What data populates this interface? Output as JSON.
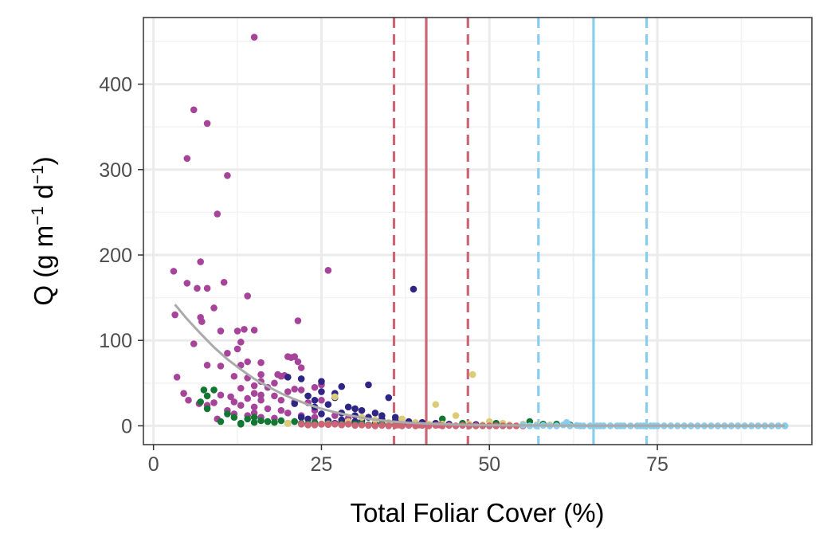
{
  "chart_data": {
    "type": "scatter",
    "xlabel": "Total Foliar Cover (%)",
    "ylabel": {
      "base": "Q (g m",
      "sup1": "−1",
      "mid": " d",
      "sup2": "−1",
      "end": ")"
    },
    "xlim": [
      -1.5,
      98
    ],
    "ylim": [
      -22,
      478
    ],
    "x_ticks": [
      0,
      25,
      50,
      75
    ],
    "x_tick_labels": [
      "0",
      "25",
      "50",
      "75"
    ],
    "y_ticks": [
      0,
      100,
      200,
      300,
      400
    ],
    "y_tick_labels": [
      "0",
      "100",
      "200",
      "300",
      "400"
    ],
    "grid": true,
    "legend": "none",
    "colors": {
      "purple": "#a6449a",
      "navy": "#2e2585",
      "green": "#117733",
      "sand": "#ddcc77",
      "rose": "#cc6677",
      "sky": "#88ccee",
      "fit": "#aaaaaa"
    },
    "vlines": [
      {
        "x": 40.6,
        "color": "#cc6677",
        "style": "solid"
      },
      {
        "x": 35.8,
        "color": "#cc6677",
        "style": "dashed"
      },
      {
        "x": 46.8,
        "color": "#cc6677",
        "style": "dashed"
      },
      {
        "x": 65.5,
        "color": "#88ccee",
        "style": "solid"
      },
      {
        "x": 57.3,
        "color": "#88ccee",
        "style": "dashed"
      },
      {
        "x": 73.4,
        "color": "#88ccee",
        "style": "dashed"
      }
    ],
    "fit_curve": {
      "color": "#aaaaaa",
      "x": [
        3.2,
        5,
        7,
        9,
        11,
        13,
        15,
        17,
        19,
        21,
        23,
        25,
        27,
        29,
        31,
        33,
        35,
        38,
        41,
        45,
        50,
        55,
        60,
        65,
        70,
        80,
        94
      ],
      "y": [
        142,
        125,
        108,
        92,
        78,
        66,
        55,
        46,
        38,
        31,
        25,
        20,
        16,
        12.5,
        9.5,
        7.2,
        5.4,
        3.6,
        2.4,
        1.4,
        0.8,
        0.5,
        0.3,
        0.2,
        0.15,
        0.1,
        0.05
      ]
    },
    "series": [
      {
        "color": "#a6449a",
        "points": [
          [
            15,
            455
          ],
          [
            6,
            370
          ],
          [
            8,
            354
          ],
          [
            5,
            313
          ],
          [
            11,
            293
          ],
          [
            9.5,
            248
          ],
          [
            26,
            182
          ],
          [
            3,
            181
          ],
          [
            7,
            192
          ],
          [
            5,
            167
          ],
          [
            6.5,
            161
          ],
          [
            8,
            161
          ],
          [
            10.5,
            168
          ],
          [
            14,
            152
          ],
          [
            3.2,
            130
          ],
          [
            9,
            138
          ],
          [
            7,
            127
          ],
          [
            7.2,
            122
          ],
          [
            21.5,
            123
          ],
          [
            12.5,
            111
          ],
          [
            15,
            112
          ],
          [
            10,
            111
          ],
          [
            13.5,
            113
          ],
          [
            6,
            96
          ],
          [
            13,
            98
          ],
          [
            11,
            85
          ],
          [
            12.5,
            90
          ],
          [
            14,
            75
          ],
          [
            13,
            71
          ],
          [
            8,
            71
          ],
          [
            10,
            70
          ],
          [
            16,
            74
          ],
          [
            20,
            81
          ],
          [
            20.5,
            80
          ],
          [
            21,
            81
          ],
          [
            21.5,
            75
          ],
          [
            22,
            68
          ],
          [
            16,
            60
          ],
          [
            18.5,
            60
          ],
          [
            19,
            58
          ],
          [
            19.5,
            59
          ],
          [
            3.5,
            57
          ],
          [
            12,
            58
          ],
          [
            14,
            56
          ],
          [
            16,
            52
          ],
          [
            18,
            50
          ],
          [
            15,
            47
          ],
          [
            13,
            44
          ],
          [
            17,
            45
          ],
          [
            21,
            43
          ],
          [
            22,
            42
          ],
          [
            24,
            45
          ],
          [
            25,
            48
          ],
          [
            20,
            40
          ],
          [
            15,
            38
          ],
          [
            16,
            36
          ],
          [
            18,
            35
          ],
          [
            10,
            36
          ],
          [
            11.5,
            34
          ],
          [
            14,
            32
          ],
          [
            12,
            28
          ],
          [
            16,
            30
          ],
          [
            19,
            30
          ],
          [
            21,
            28
          ],
          [
            23,
            27
          ],
          [
            25,
            30
          ],
          [
            13,
            24
          ],
          [
            15,
            22
          ],
          [
            17,
            20
          ],
          [
            19,
            18
          ],
          [
            20,
            15
          ],
          [
            22,
            12
          ],
          [
            24,
            10
          ],
          [
            11,
            18
          ],
          [
            12,
            14
          ],
          [
            14,
            12
          ],
          [
            16,
            10
          ],
          [
            18,
            9
          ],
          [
            9,
            27
          ],
          [
            8,
            24
          ],
          [
            4.5,
            38
          ],
          [
            5.2,
            30
          ],
          [
            6.8,
            26
          ],
          [
            9.5,
            8
          ],
          [
            26,
            6
          ],
          [
            28,
            5
          ],
          [
            24,
            18
          ],
          [
            27,
            12
          ],
          [
            29,
            9
          ],
          [
            15,
            15
          ]
        ]
      },
      {
        "color": "#2e2585",
        "points": [
          [
            38.7,
            160
          ],
          [
            32,
            48
          ],
          [
            25,
            52
          ],
          [
            28,
            46
          ],
          [
            35,
            33
          ],
          [
            20,
            57
          ],
          [
            22,
            55
          ],
          [
            23,
            35
          ],
          [
            27,
            33
          ],
          [
            29,
            22
          ],
          [
            30,
            20
          ],
          [
            31,
            18
          ],
          [
            33,
            15
          ],
          [
            34,
            12
          ],
          [
            36,
            10
          ],
          [
            26,
            25
          ],
          [
            24,
            22
          ],
          [
            25,
            14
          ],
          [
            28,
            15
          ],
          [
            30,
            12
          ],
          [
            32,
            10
          ],
          [
            34,
            8
          ],
          [
            36,
            6
          ],
          [
            38,
            5
          ],
          [
            40,
            4
          ],
          [
            42,
            3
          ],
          [
            44,
            2
          ],
          [
            31,
            6
          ],
          [
            29,
            4
          ],
          [
            27,
            3
          ],
          [
            33,
            3
          ],
          [
            35,
            2
          ],
          [
            37,
            2
          ],
          [
            39,
            1.5
          ],
          [
            41,
            1
          ],
          [
            22,
            10
          ],
          [
            23,
            8
          ],
          [
            26,
            6
          ],
          [
            28,
            7
          ],
          [
            30,
            5
          ],
          [
            46,
            2
          ],
          [
            48,
            1.5
          ],
          [
            24,
            30
          ],
          [
            21,
            26
          ],
          [
            25,
            40
          ],
          [
            27,
            38
          ]
        ]
      },
      {
        "color": "#117733",
        "points": [
          [
            7.5,
            42
          ],
          [
            9,
            42
          ],
          [
            8,
            35
          ],
          [
            7,
            28
          ],
          [
            8,
            20
          ],
          [
            10,
            5
          ],
          [
            13,
            3
          ],
          [
            15,
            10
          ],
          [
            17,
            5
          ],
          [
            12,
            10
          ],
          [
            14,
            8
          ],
          [
            16,
            6
          ],
          [
            18,
            4
          ],
          [
            20,
            3
          ],
          [
            22,
            3
          ],
          [
            24,
            4
          ],
          [
            26,
            3
          ],
          [
            28,
            2
          ],
          [
            30,
            2
          ],
          [
            32,
            1
          ],
          [
            34,
            2
          ],
          [
            36,
            1
          ],
          [
            38,
            1
          ],
          [
            43,
            8
          ],
          [
            46,
            3
          ],
          [
            51,
            3
          ],
          [
            56,
            5
          ],
          [
            58,
            2
          ],
          [
            60,
            2
          ],
          [
            62,
            1
          ],
          [
            11,
            14
          ],
          [
            19,
            6
          ],
          [
            21,
            5
          ],
          [
            23,
            2
          ],
          [
            25,
            2
          ],
          [
            15,
            4
          ],
          [
            13,
            2
          ],
          [
            31,
            3
          ],
          [
            33,
            1
          ],
          [
            35,
            3
          ]
        ]
      },
      {
        "color": "#ddcc77",
        "points": [
          [
            47.5,
            60
          ],
          [
            27,
            34
          ],
          [
            42,
            25
          ],
          [
            45,
            12
          ],
          [
            37,
            8
          ],
          [
            50,
            5
          ],
          [
            52,
            3
          ],
          [
            55,
            2
          ],
          [
            39,
            4
          ],
          [
            41,
            2
          ],
          [
            43,
            2
          ],
          [
            47,
            2
          ],
          [
            49,
            1
          ],
          [
            53,
            1
          ],
          [
            31,
            10
          ],
          [
            33,
            7
          ],
          [
            29,
            5
          ],
          [
            20,
            3
          ],
          [
            26,
            2
          ],
          [
            35,
            4
          ],
          [
            57,
            1
          ],
          [
            59,
            1
          ]
        ]
      },
      {
        "color": "#cc6677",
        "points": [
          [
            22,
            2
          ],
          [
            24,
            1
          ],
          [
            26,
            1.5
          ],
          [
            28,
            1
          ],
          [
            30,
            0.5
          ],
          [
            31,
            1
          ],
          [
            32,
            0.5
          ],
          [
            33,
            0
          ],
          [
            34,
            0.5
          ],
          [
            35,
            0
          ],
          [
            36,
            0.5
          ],
          [
            37,
            0
          ],
          [
            38,
            0.5
          ],
          [
            39,
            0
          ],
          [
            40,
            0.5
          ],
          [
            41,
            0
          ],
          [
            42,
            0.5
          ],
          [
            43,
            0
          ],
          [
            44,
            0.5
          ],
          [
            45,
            0
          ],
          [
            46,
            0.5
          ],
          [
            47,
            0
          ],
          [
            48,
            0
          ],
          [
            49,
            0
          ],
          [
            50,
            0
          ],
          [
            51,
            0
          ],
          [
            52,
            0
          ],
          [
            53,
            0
          ],
          [
            54,
            0
          ],
          [
            55,
            0
          ],
          [
            29,
            2
          ],
          [
            27,
            2
          ],
          [
            25,
            2
          ],
          [
            23,
            1
          ],
          [
            36.5,
            1
          ],
          [
            39.5,
            1
          ],
          [
            42.5,
            1
          ]
        ]
      },
      {
        "color": "#88ccee",
        "points": [
          [
            55,
            1
          ],
          [
            56,
            0
          ],
          [
            57,
            0
          ],
          [
            58,
            0.5
          ],
          [
            59,
            0
          ],
          [
            60,
            0
          ],
          [
            61,
            1
          ],
          [
            61.5,
            4
          ],
          [
            62,
            0
          ],
          [
            63,
            0.5
          ],
          [
            64,
            0
          ],
          [
            65,
            0
          ],
          [
            66,
            0
          ],
          [
            67,
            0
          ],
          [
            68,
            0
          ],
          [
            69,
            0
          ],
          [
            70,
            0
          ],
          [
            71,
            0
          ],
          [
            72,
            0
          ],
          [
            73,
            0
          ],
          [
            74,
            0
          ],
          [
            75,
            0
          ],
          [
            76,
            0
          ],
          [
            77,
            0
          ],
          [
            78,
            0
          ],
          [
            79,
            0
          ],
          [
            80,
            0
          ],
          [
            81,
            0
          ],
          [
            82,
            0
          ],
          [
            83,
            0
          ],
          [
            84,
            0
          ],
          [
            85,
            0
          ],
          [
            86,
            0
          ],
          [
            87,
            0
          ],
          [
            88,
            0
          ],
          [
            89,
            0
          ],
          [
            90,
            0
          ],
          [
            91,
            0
          ],
          [
            92,
            0
          ],
          [
            93,
            0
          ],
          [
            94,
            0
          ],
          [
            63.5,
            0
          ],
          [
            66.5,
            0
          ],
          [
            69.5,
            0
          ],
          [
            72.5,
            0
          ],
          [
            74.5,
            0
          ]
        ]
      }
    ]
  }
}
